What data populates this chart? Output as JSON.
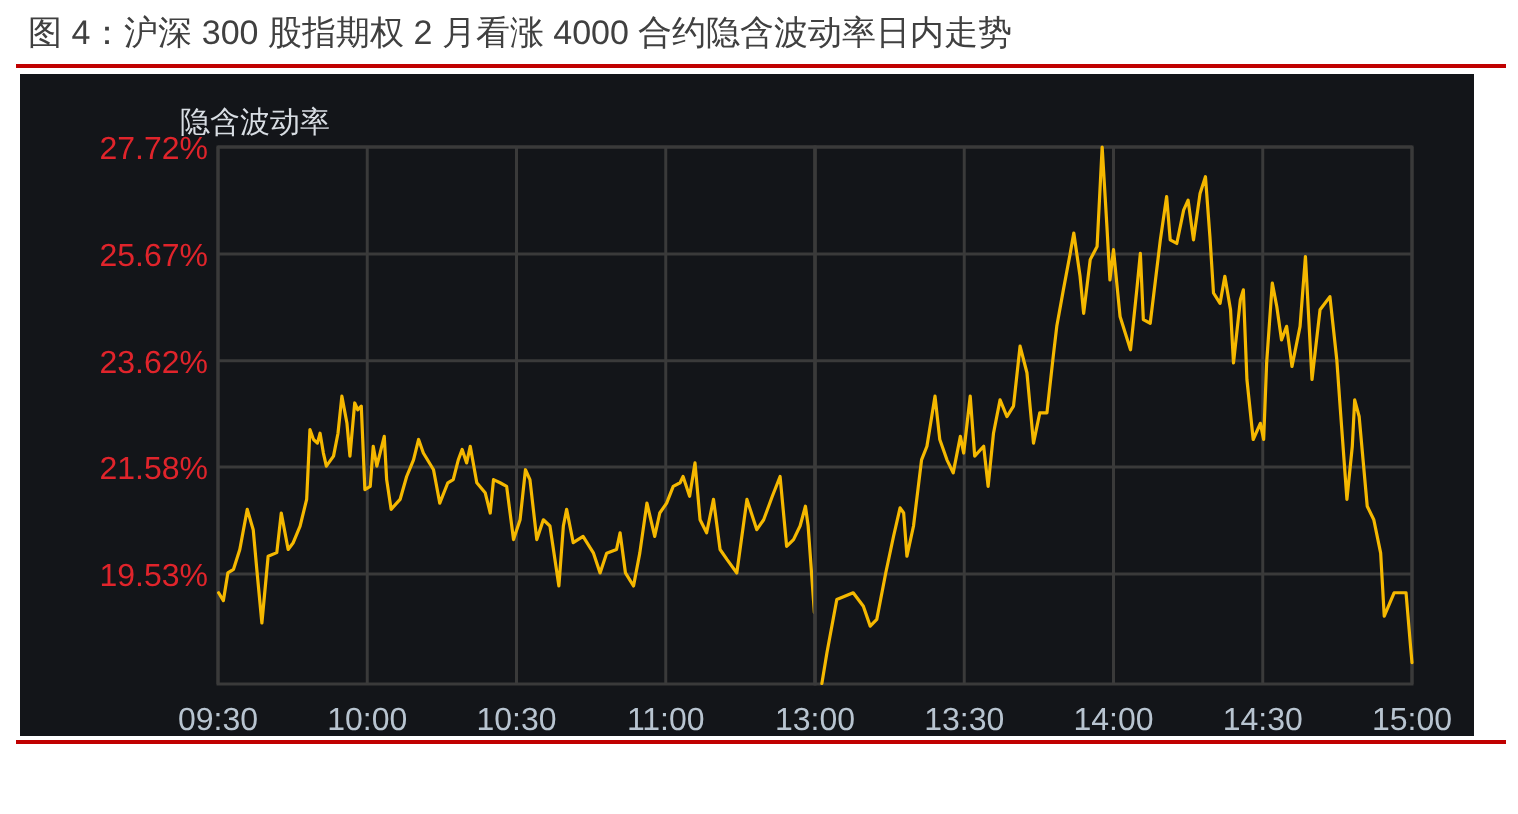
{
  "chart_data": [
    {
      "type": "line",
      "title": "图 4：沪深 300 股指期权 2 月看涨 4000 合约隐含波动率日内走势",
      "ylabel": "隐含波动率",
      "xlim": [
        9.5,
        11.5
      ],
      "xticks": [
        {
          "value": 9.5,
          "label": "09:30"
        },
        {
          "value": 10,
          "label": "10:00"
        },
        {
          "value": 10.5,
          "label": "10:30"
        },
        {
          "value": 11,
          "label": "11:00"
        }
      ],
      "ylim": [
        17.42,
        27.72
      ],
      "yticks": [
        {
          "value": 19.53,
          "label": "19.53%"
        },
        {
          "value": 21.58,
          "label": "21.58%"
        },
        {
          "value": 23.62,
          "label": "23.62%"
        },
        {
          "value": 25.67,
          "label": "25.67%"
        },
        {
          "value": 27.72,
          "label": "27.72%"
        }
      ],
      "grid": true,
      "marker": "none",
      "line_style": "solid",
      "series": [
        {
          "color": "#f5b800",
          "x": [
            9.502,
            9.518,
            9.533,
            9.552,
            9.573,
            9.598,
            9.618,
            9.63,
            9.647,
            9.668,
            9.697,
            9.712,
            9.735,
            9.752,
            9.775,
            9.797,
            9.808,
            9.82,
            9.833,
            9.842,
            9.853,
            9.863,
            9.887,
            9.902,
            9.915,
            9.932,
            9.942,
            9.958,
            9.968,
            9.98,
            9.992,
            10.01,
            10.02,
            10.032,
            10.043,
            10.057,
            10.065,
            10.08,
            10.11,
            10.132,
            10.155,
            10.172,
            10.188,
            10.222,
            10.243,
            10.27,
            10.288,
            10.305,
            10.318,
            10.333,
            10.345,
            10.367,
            10.395,
            10.412,
            10.423,
            10.445,
            10.467,
            10.49,
            10.512,
            10.53,
            10.545,
            10.568,
            10.59,
            10.612,
            10.642,
            10.657,
            10.668,
            10.69,
            10.723,
            10.758,
            10.78,
            10.802,
            10.835,
            10.847,
            10.865,
            10.892,
            10.913,
            10.937,
            10.963,
            10.98,
            11.003,
            11.025,
            11.048,
            11.058,
            11.08,
            11.098,
            11.115,
            11.137,
            11.16,
            11.182,
            11.205,
            11.238,
            11.272,
            11.305,
            11.328,
            11.357,
            11.383,
            11.405,
            11.428,
            11.45,
            11.468,
            11.477,
            11.498
          ],
          "values": [
            19.17,
            19.02,
            19.55,
            19.62,
            20.0,
            20.77,
            20.38,
            19.62,
            18.59,
            19.87,
            19.94,
            20.7,
            20.0,
            20.13,
            20.45,
            20.96,
            22.3,
            22.11,
            22.04,
            22.23,
            21.85,
            21.6,
            21.79,
            22.23,
            22.94,
            22.42,
            21.79,
            22.81,
            22.68,
            22.75,
            21.15,
            21.21,
            21.98,
            21.6,
            21.85,
            22.17,
            21.34,
            20.77,
            20.96,
            21.4,
            21.72,
            22.11,
            21.85,
            21.53,
            20.89,
            21.28,
            21.34,
            21.72,
            21.92,
            21.66,
            21.98,
            21.28,
            21.09,
            20.7,
            21.34,
            21.28,
            21.21,
            20.19,
            20.57,
            21.53,
            21.34,
            20.19,
            20.57,
            20.45,
            19.3,
            20.45,
            20.77,
            20.13,
            20.25,
            19.93,
            19.55,
            19.93,
            20.0,
            20.32,
            19.55,
            19.3,
            19.93,
            20.89,
            20.25,
            20.7,
            20.89,
            21.21,
            21.28,
            21.4,
            21.02,
            21.66,
            20.57,
            20.32,
            20.96,
            20.0,
            19.81,
            19.55,
            20.96,
            20.38,
            20.57,
            21.02,
            21.4,
            20.06,
            20.19,
            20.45,
            20.83,
            20.45,
            18.79
          ]
        }
      ]
    },
    {
      "type": "line",
      "tick_labels": "x",
      "xlim": [
        13,
        15
      ],
      "xticks": [
        {
          "value": 13,
          "label": "13:00"
        },
        {
          "value": 13.5,
          "label": "13:30"
        },
        {
          "value": 14,
          "label": "14:00"
        },
        {
          "value": 14.5,
          "label": "14:30"
        },
        {
          "value": 15,
          "label": "15:00"
        }
      ],
      "ylim": [
        17.42,
        27.72
      ],
      "yticks": [
        19.53,
        21.58,
        23.62,
        25.67,
        27.72
      ],
      "grid": true,
      "marker": "none",
      "line_style": "solid",
      "series": [
        {
          "color": "#f5b800",
          "x": [
            13.023,
            13.04,
            13.073,
            13.128,
            13.162,
            13.185,
            13.207,
            13.237,
            13.263,
            13.285,
            13.297,
            13.308,
            13.33,
            13.357,
            13.375,
            13.402,
            13.418,
            13.442,
            13.463,
            13.487,
            13.498,
            13.52,
            13.535,
            13.565,
            13.58,
            13.598,
            13.62,
            13.643,
            13.665,
            13.687,
            13.71,
            13.732,
            13.753,
            13.777,
            13.798,
            13.81,
            13.832,
            13.855,
            13.867,
            13.888,
            13.9,
            13.922,
            13.945,
            13.962,
            13.978,
            13.988,
            14.0,
            14.022,
            14.057,
            14.078,
            14.09,
            14.1,
            14.123,
            14.157,
            14.178,
            14.19,
            14.212,
            14.235,
            14.25,
            14.268,
            14.29,
            14.308,
            14.323,
            14.335,
            14.357,
            14.373,
            14.392,
            14.402,
            14.425,
            14.435,
            14.447,
            14.468,
            14.492,
            14.503,
            14.513,
            14.532,
            14.547,
            14.563,
            14.58,
            14.598,
            14.625,
            14.643,
            14.665,
            14.692,
            14.725,
            14.748,
            14.76,
            14.782,
            14.8,
            14.808,
            14.823,
            14.85,
            14.872,
            14.895,
            14.907,
            14.94,
            14.98,
            14.995,
            15.0
          ],
          "values": [
            17.43,
            18.02,
            19.04,
            19.17,
            18.91,
            18.53,
            18.66,
            19.55,
            20.25,
            20.8,
            20.7,
            19.87,
            20.45,
            21.72,
            21.98,
            22.94,
            22.11,
            21.72,
            21.47,
            22.17,
            21.85,
            22.94,
            21.79,
            21.98,
            21.21,
            22.23,
            22.87,
            22.55,
            22.75,
            23.9,
            23.39,
            22.04,
            22.62,
            22.62,
            23.7,
            24.28,
            24.98,
            25.68,
            26.07,
            25.24,
            24.53,
            25.56,
            25.81,
            27.72,
            26.19,
            25.17,
            25.75,
            24.47,
            23.83,
            24.98,
            25.68,
            24.41,
            24.34,
            25.94,
            26.77,
            25.94,
            25.87,
            26.51,
            26.7,
            25.94,
            26.83,
            27.15,
            26.0,
            24.92,
            24.72,
            25.24,
            24.6,
            23.58,
            24.79,
            24.98,
            23.26,
            22.11,
            22.42,
            22.11,
            23.58,
            25.11,
            24.66,
            24.02,
            24.28,
            23.51,
            24.28,
            25.62,
            23.26,
            24.6,
            24.85,
            23.64,
            22.68,
            20.96,
            21.98,
            22.87,
            22.55,
            20.83,
            20.57,
            19.93,
            18.72,
            19.17,
            19.17,
            18.15,
            17.83
          ]
        }
      ]
    }
  ]
}
